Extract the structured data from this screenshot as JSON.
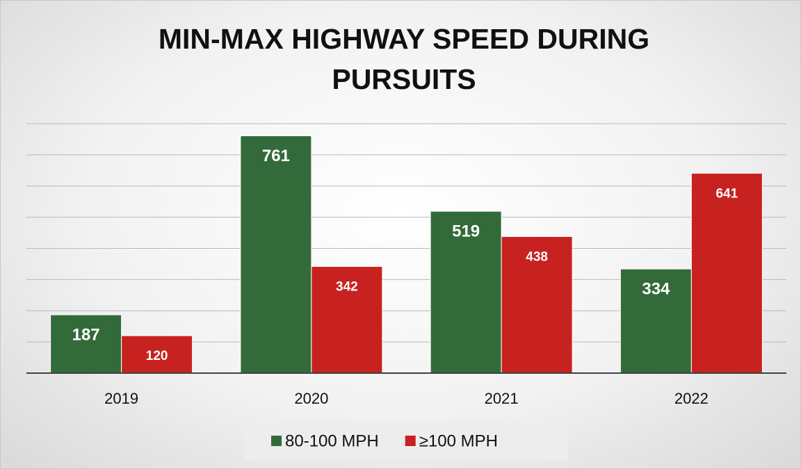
{
  "chart_data": {
    "type": "bar",
    "title": "MIN-MAX HIGHWAY SPEED DURING PURSUITS",
    "categories": [
      "2019",
      "2020",
      "2021",
      "2022"
    ],
    "series": [
      {
        "name": "80-100 MPH",
        "color": "#336a3a",
        "values": [
          187,
          761,
          519,
          334
        ]
      },
      {
        "name": "≥100 MPH",
        "color": "#c72220",
        "values": [
          120,
          342,
          438,
          641
        ]
      }
    ],
    "ylim": [
      0,
      800
    ],
    "yticks": [
      0,
      100,
      200,
      300,
      400,
      500,
      600,
      700,
      800
    ],
    "grid": true,
    "legend": "bottom"
  }
}
